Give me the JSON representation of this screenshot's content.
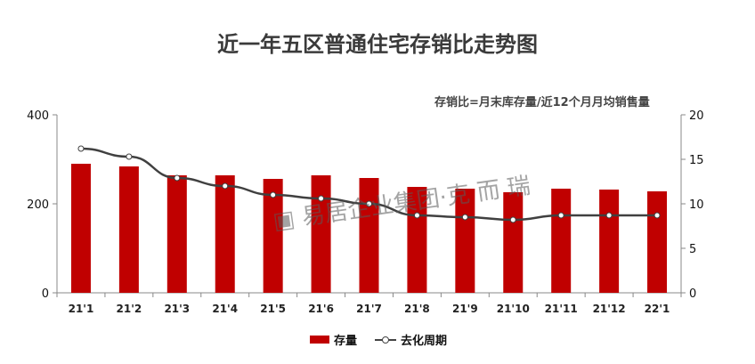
{
  "chart_data": {
    "type": "bar",
    "title": "近一年五区普通住宅存销比走势图",
    "annotation": "存销比=月末库存量/近12个月月均销售量",
    "categories": [
      "21'1",
      "21'2",
      "21'3",
      "21'4",
      "21'5",
      "21'6",
      "21'7",
      "21'8",
      "21'9",
      "21'10",
      "21'11",
      "21'12",
      "22'1"
    ],
    "series": [
      {
        "name": "存量",
        "type": "bar",
        "axis": "left",
        "color": "#c00000",
        "values": [
          290,
          284,
          264,
          264,
          256,
          264,
          258,
          238,
          234,
          226,
          234,
          232,
          228
        ]
      },
      {
        "name": "去化周期",
        "type": "line",
        "axis": "right",
        "color": "#404040",
        "values": [
          16.2,
          15.3,
          12.9,
          12.0,
          11.0,
          10.6,
          10.0,
          8.7,
          8.5,
          8.2,
          8.7,
          8.7,
          8.7
        ]
      }
    ],
    "ylim": [
      0,
      400
    ],
    "yticks": [
      0,
      200,
      400
    ],
    "y2lim": [
      0,
      20
    ],
    "y2ticks": [
      0,
      5,
      10,
      15,
      20
    ],
    "legend": "bottom",
    "grid": false
  },
  "watermark": "易居企业集团·克而瑞"
}
